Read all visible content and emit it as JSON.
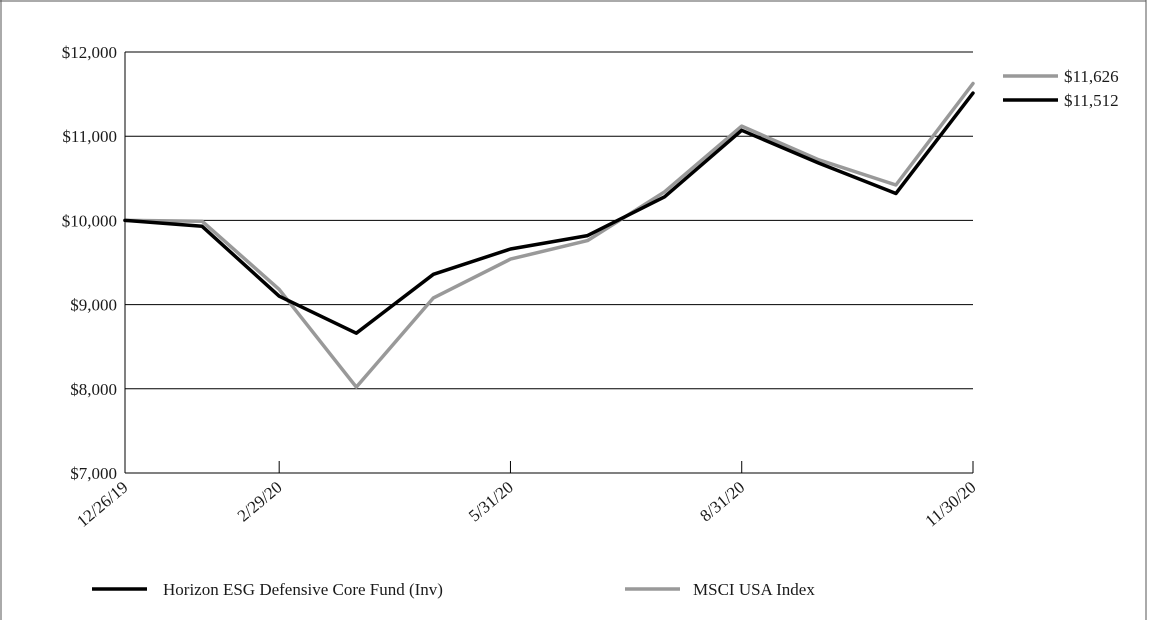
{
  "chart_data": {
    "type": "line",
    "title": "",
    "xlabel": "",
    "ylabel": "",
    "ylim": [
      7000,
      12000
    ],
    "yticks": [
      7000,
      8000,
      9000,
      10000,
      11000,
      12000
    ],
    "ytick_labels": [
      "$7,000",
      "$8,000",
      "$9,000",
      "$10,000",
      "$11,000",
      "$12,000"
    ],
    "x": [
      "12/26/19",
      "1/31/20",
      "2/29/20",
      "3/31/20",
      "4/30/20",
      "5/31/20",
      "6/30/20",
      "7/31/20",
      "8/31/20",
      "9/30/20",
      "10/31/20",
      "11/30/20"
    ],
    "xtick_labels": [
      "12/26/19",
      "2/29/20",
      "5/31/20",
      "8/31/20",
      "11/30/20"
    ],
    "grid": "horizontal",
    "legend_position": "bottom",
    "series": [
      {
        "name": "Horizon ESG Defensive Core Fund (Inv)",
        "color": "#000000",
        "values": [
          10000,
          9930,
          9100,
          8660,
          9360,
          9660,
          9820,
          10280,
          11070,
          10680,
          10320,
          11512
        ],
        "end_label": "$11,512"
      },
      {
        "name": "MSCI USA Index",
        "color": "#999999",
        "values": [
          10000,
          9990,
          9180,
          8020,
          9080,
          9540,
          9760,
          10340,
          11120,
          10720,
          10420,
          11626
        ],
        "end_label": "$11,626"
      }
    ]
  }
}
